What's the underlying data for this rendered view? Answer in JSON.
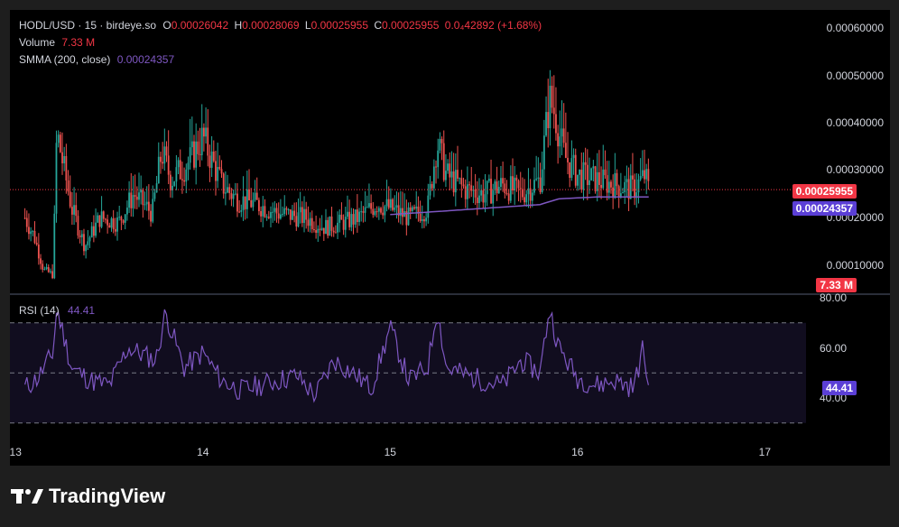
{
  "legend": {
    "symbol": "HODL/USD · 15 · birdeye.so",
    "o_label": "O",
    "o_value": "0.00026042",
    "h_label": "H",
    "h_value": "0.00028069",
    "l_label": "L",
    "l_value": "0.00025955",
    "c_label": "C",
    "c_value": "0.00025955",
    "change": "0.0₄42892 (+1.68%)",
    "volume_label": "Volume",
    "volume_value": "7.33 M",
    "smma_label": "SMMA (200, close)",
    "smma_value": "0.00024357"
  },
  "rsi": {
    "label": "RSI (14)",
    "value": "44.41"
  },
  "price_tags": {
    "close": "0.00025955",
    "smma": "0.00024357",
    "volume": "7.33 M",
    "rsi": "44.41"
  },
  "colors": {
    "up": "#26a69a",
    "down": "#ef5350",
    "smma": "#7e57c2",
    "rsi": "#7e57c2",
    "close_tag": "#f23645",
    "smma_tag": "#5b3fd6"
  },
  "brand": {
    "name": "TradingView"
  },
  "chart_data": [
    {
      "type": "candlestick",
      "title": "HODL/USD · 15 · birdeye.so",
      "y_ticks": [
        "0.00010000",
        "0.00020000",
        "0.00030000",
        "0.00040000",
        "0.00050000",
        "0.00060000"
      ],
      "ylim": [
        5e-05,
        0.00062
      ],
      "x_ticks": [
        "13",
        "14",
        "15",
        "16",
        "17"
      ],
      "x_tick_days": [
        13,
        14,
        15,
        16,
        17
      ],
      "xlim": [
        12.97,
        17.22
      ],
      "last_close": 0.00025955,
      "smma_last": 0.00024357,
      "path_days": [
        13.05,
        13.1,
        13.15,
        13.2,
        13.22,
        13.3,
        13.37,
        13.45,
        13.55,
        13.63,
        13.73,
        13.78,
        13.83,
        13.93,
        14.0,
        14.1,
        14.18,
        14.28,
        14.4,
        14.55,
        14.65,
        14.75,
        14.83,
        14.93,
        15.0,
        15.1,
        15.2,
        15.25,
        15.3,
        15.4,
        15.5,
        15.6,
        15.7,
        15.8,
        15.85,
        15.88,
        15.93,
        16.0,
        16.1,
        16.2,
        16.3,
        16.36,
        16.38
      ],
      "path_prices": [
        0.0002,
        0.00016,
        9e-05,
        8e-05,
        0.00038,
        0.00022,
        0.00014,
        0.0002,
        0.00019,
        0.00025,
        0.00021,
        0.00034,
        0.00028,
        0.00032,
        0.00037,
        0.00027,
        0.00024,
        0.00023,
        0.00021,
        0.0002,
        0.00018,
        0.00019,
        0.0002,
        0.00023,
        0.00022,
        0.0002,
        0.00022,
        0.00036,
        0.00029,
        0.00026,
        0.00025,
        0.00027,
        0.00025,
        0.00028,
        0.00045,
        0.00042,
        0.00033,
        0.00029,
        0.00028,
        0.00027,
        0.00026,
        0.00029,
        0.00026
      ],
      "smma_days": [
        15.0,
        15.2,
        15.5,
        15.8,
        15.9,
        16.1,
        16.38
      ],
      "smma_values": [
        0.000207,
        0.000212,
        0.00022,
        0.000228,
        0.00024,
        0.000244,
        0.000244
      ]
    },
    {
      "type": "line",
      "title": "RSI (14)",
      "y_ticks": [
        "40.00",
        "60.00",
        "80.00"
      ],
      "ylim": [
        32,
        84
      ],
      "bands": [
        30,
        50,
        70
      ],
      "last_value": 44.41,
      "path_days": [
        13.05,
        13.12,
        13.2,
        13.22,
        13.3,
        13.4,
        13.5,
        13.6,
        13.75,
        13.8,
        13.9,
        14.0,
        14.1,
        14.2,
        14.35,
        14.5,
        14.6,
        14.7,
        14.8,
        14.9,
        15.0,
        15.1,
        15.2,
        15.25,
        15.3,
        15.45,
        15.6,
        15.7,
        15.8,
        15.85,
        15.9,
        16.0,
        16.1,
        16.2,
        16.3,
        16.35,
        16.38
      ],
      "path_values": [
        44,
        48,
        58,
        76,
        52,
        47,
        45,
        60,
        55,
        74,
        52,
        58,
        47,
        43,
        46,
        49,
        41,
        55,
        50,
        44,
        68,
        47,
        52,
        76,
        52,
        48,
        45,
        55,
        50,
        76,
        60,
        48,
        45,
        47,
        44,
        60,
        44.41
      ]
    }
  ]
}
